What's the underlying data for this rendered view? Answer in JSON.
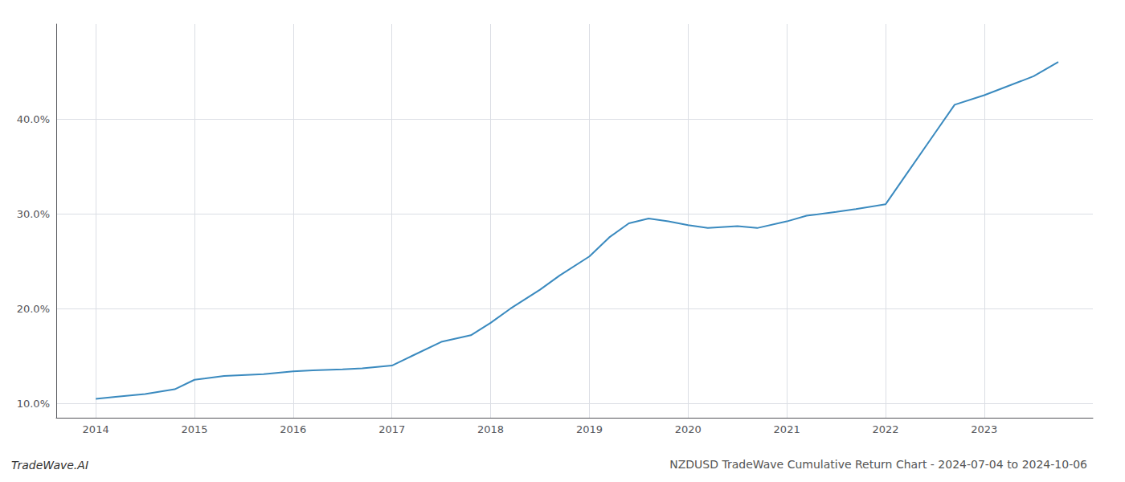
{
  "chart_data": {
    "type": "line",
    "title": "NZDUSD TradeWave Cumulative Return Chart - 2024-07-04 to 2024-10-06",
    "annotations": [
      "TradeWave.AI"
    ],
    "x": [
      2014.0,
      2014.2,
      2014.5,
      2014.8,
      2015.0,
      2015.3,
      2015.7,
      2016.0,
      2016.2,
      2016.5,
      2016.7,
      2017.0,
      2017.2,
      2017.5,
      2017.8,
      2018.0,
      2018.2,
      2018.5,
      2018.7,
      2019.0,
      2019.2,
      2019.4,
      2019.6,
      2019.8,
      2020.0,
      2020.2,
      2020.5,
      2020.7,
      2021.0,
      2021.2,
      2021.5,
      2021.7,
      2022.0,
      2022.2,
      2022.5,
      2022.7,
      2023.0,
      2023.5,
      2023.75
    ],
    "values": [
      10.5,
      10.7,
      11.0,
      11.5,
      12.5,
      12.9,
      13.1,
      13.4,
      13.5,
      13.6,
      13.7,
      14.0,
      15.0,
      16.5,
      17.2,
      18.5,
      20.0,
      22.0,
      23.5,
      25.5,
      27.5,
      29.0,
      29.5,
      29.2,
      28.8,
      28.5,
      28.7,
      28.5,
      29.2,
      29.8,
      30.2,
      30.5,
      31.0,
      34.0,
      38.5,
      41.5,
      42.5,
      44.5,
      46.0
    ],
    "color": "#3a8abf",
    "xlim": [
      2013.6,
      2024.1
    ],
    "xticks": [
      2014,
      2015,
      2016,
      2017,
      2018,
      2019,
      2020,
      2021,
      2022,
      2023
    ],
    "ylim": [
      8.5,
      50.0
    ],
    "yticks": [
      {
        "value": 10.0,
        "label": "10.0%"
      },
      {
        "value": 20.0,
        "label": "20.0%"
      },
      {
        "value": 30.0,
        "label": "30.0%"
      },
      {
        "value": 40.0,
        "label": "40.0%"
      }
    ],
    "grid": true
  }
}
